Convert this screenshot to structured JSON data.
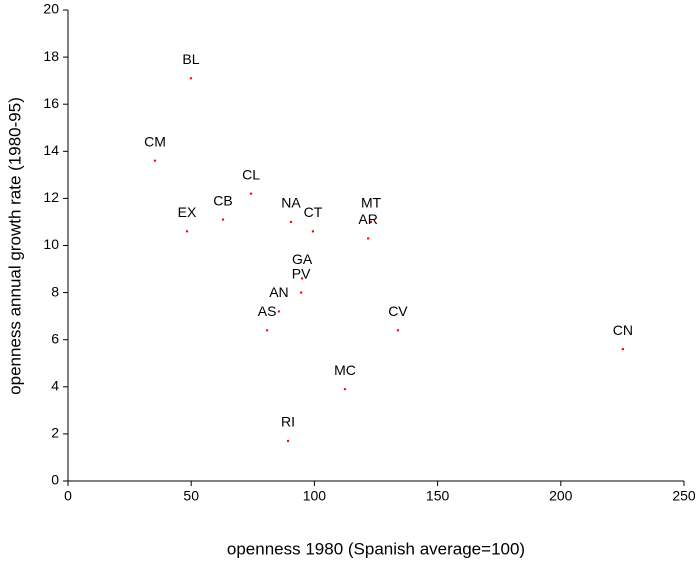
{
  "chart_data": {
    "type": "scatter",
    "x_label": "openness 1980 (Spanish average=100)",
    "y_label": "openness annual growth rate (1980-95)",
    "labels": [
      "BL",
      "CM",
      "CL",
      "CB",
      "EX",
      "NA",
      "CT",
      "MT",
      "AR",
      "GA",
      "PV",
      "AN",
      "AS",
      "CV",
      "CN",
      "MC",
      "RI"
    ],
    "x": [
      49.9,
      35.3,
      74.3,
      62.9,
      48.3,
      90.5,
      99.4,
      123,
      121.8,
      95,
      94.6,
      85.6,
      80.8,
      133.9,
      225.2,
      112.4,
      89.3
    ],
    "y": [
      17.1,
      13.6,
      12.2,
      11.1,
      10.6,
      11.0,
      10.6,
      11.0,
      10.3,
      8.6,
      8.0,
      7.2,
      6.4,
      6.4,
      5.6,
      3.9,
      1.7
    ],
    "color": "#ff0000",
    "xlim": [
      0,
      250
    ],
    "xticks": [
      0,
      50,
      100,
      150,
      200,
      250
    ],
    "ylim": [
      0,
      20
    ],
    "yticks": [
      0,
      2,
      4,
      6,
      8,
      10,
      12,
      14,
      16,
      18,
      20
    ]
  }
}
